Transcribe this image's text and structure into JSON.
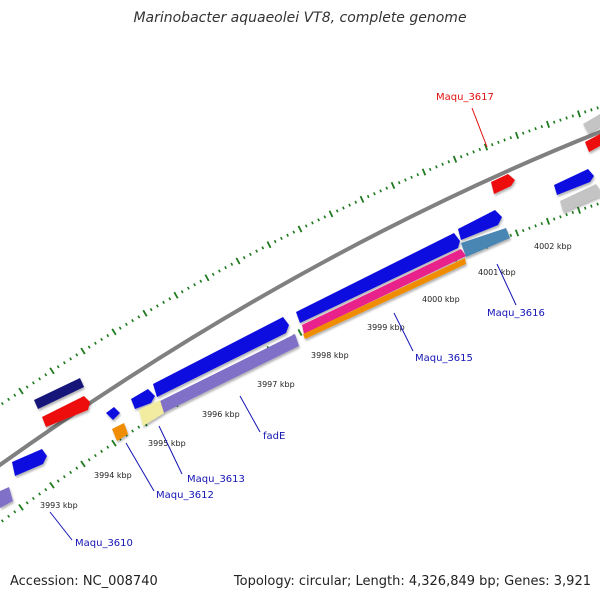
{
  "title": "Marinobacter aquaeolei VT8, complete genome",
  "footer": {
    "accession": "Accession: NC_008740",
    "topology": "Topology: circular; Length: 4,326,849 bp; Genes: 3,921"
  },
  "kbp_labels": [
    "3993 kbp",
    "3994 kbp",
    "3995 kbp",
    "3996 kbp",
    "3997 kbp",
    "3998 kbp",
    "3999 kbp",
    "4000 kbp",
    "4001 kbp",
    "4002 kbp"
  ],
  "gene_labels": {
    "maqu_3617": "Maqu_3617",
    "maqu_3616": "Maqu_3616",
    "maqu_3615": "Maqu_3615",
    "fadE": "fadE",
    "maqu_3613": "Maqu_3613",
    "maqu_3612": "Maqu_3612",
    "maqu_3610": "Maqu_3610"
  },
  "colors": {
    "backbone": "#808080",
    "tick": "#1f7a1f",
    "forward_gene": "#1010e0",
    "dark_gene": "#14147a",
    "red_gene": "#ee1111",
    "gray_gene": "#c4c4c4",
    "purple_gene": "#8070c8",
    "pink_gene": "#e8208a",
    "orange_gene": "#f08c00",
    "steel_gene": "#4a86b4",
    "pale_yellow_gene": "#f2eca0",
    "highlight_label": "#e01010",
    "label": "#1414b4"
  }
}
